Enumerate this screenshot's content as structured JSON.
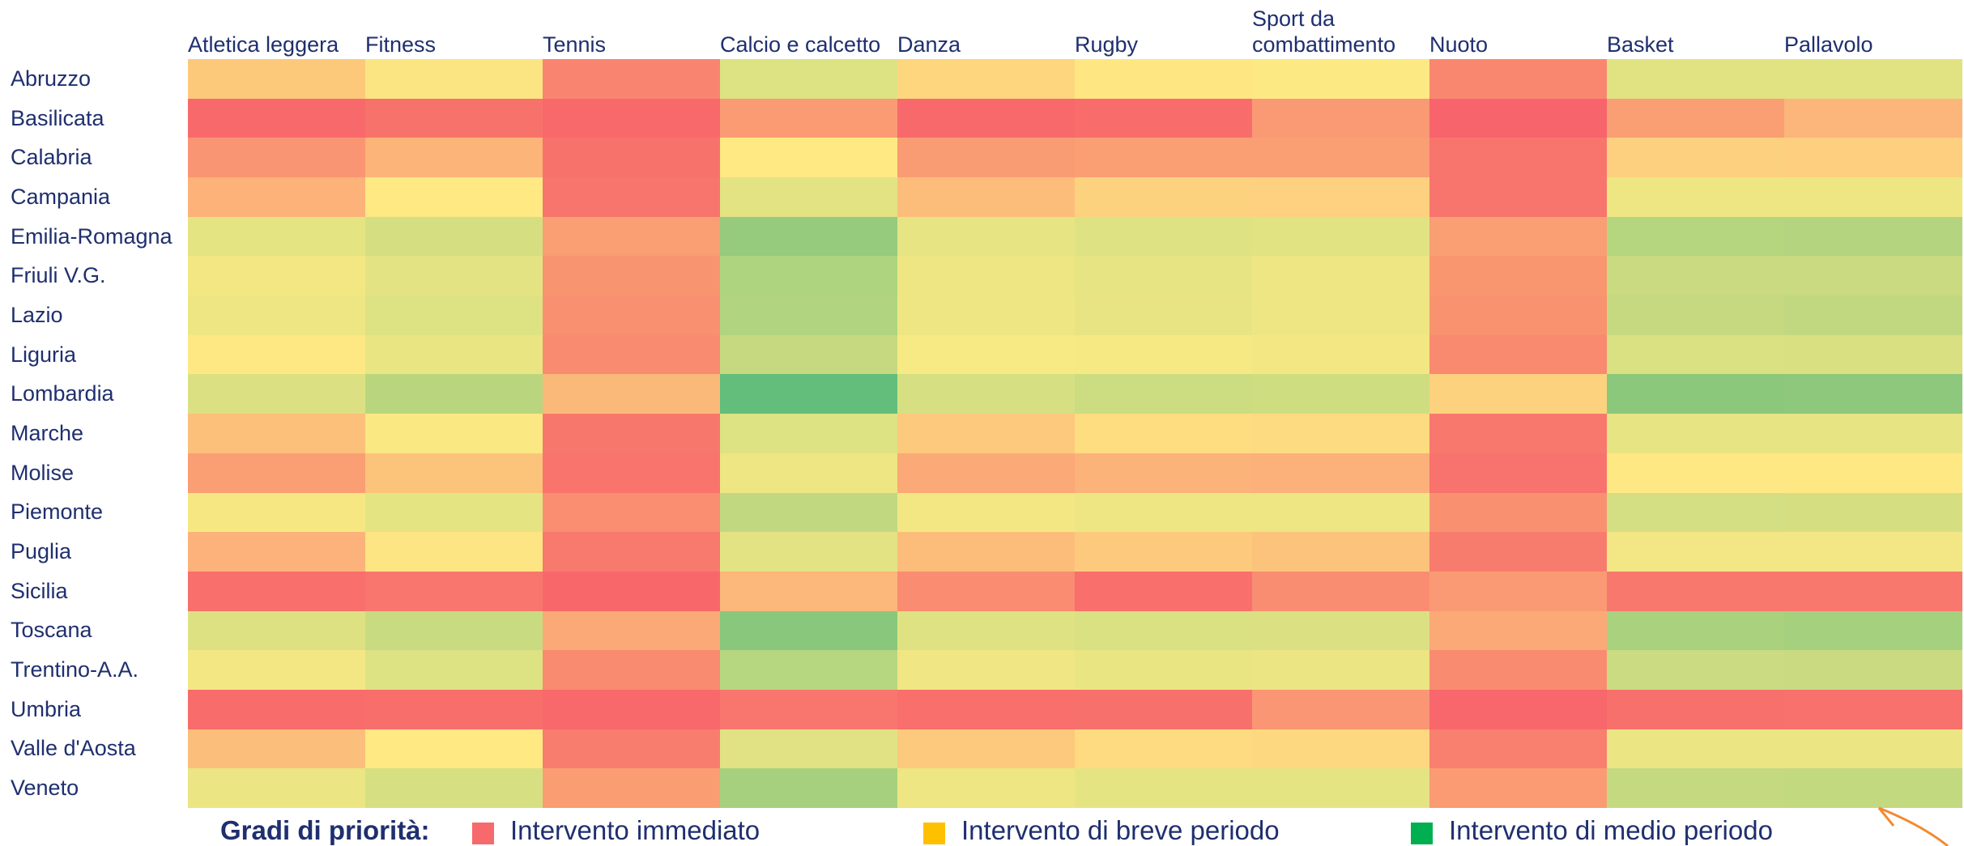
{
  "chart_data": {
    "type": "heatmap",
    "categories": [
      "Atletica leggera",
      "Fitness",
      "Tennis",
      "Calcio e calcetto",
      "Danza",
      "Rugby",
      "Sport da combattimento",
      "Nuoto",
      "Basket",
      "Pallavolo"
    ],
    "rows": [
      "Abruzzo",
      "Basilicata",
      "Calabria",
      "Campania",
      "Emilia-Romagna",
      "Friuli V.G.",
      "Lazio",
      "Liguria",
      "Lombardia",
      "Marche",
      "Molise",
      "Piemonte",
      "Puglia",
      "Sicilia",
      "Toscana",
      "Trentino-A.A.",
      "Umbria",
      "Valle d'Aosta",
      "Veneto"
    ],
    "colors": [
      [
        "#fcc97b",
        "#fbe583",
        "#f98570",
        "#dde283",
        "#fdd67e",
        "#fee782",
        "#fde984",
        "#f9876f",
        "#e1e383",
        "#e1e383"
      ],
      [
        "#f8696b",
        "#f8726c",
        "#f8696b",
        "#fa9b74",
        "#f8696b",
        "#f86d6b",
        "#fa9a74",
        "#f8646b",
        "#fa9e74",
        "#fcb57a"
      ],
      [
        "#fa9573",
        "#fcb479",
        "#f8726c",
        "#fee983",
        "#fa9c73",
        "#fa9e74",
        "#fa9e74",
        "#f8756d",
        "#fdd07f",
        "#fdcf7f"
      ],
      [
        "#fcb279",
        "#fee983",
        "#f8756d",
        "#e3e383",
        "#fcbd7b",
        "#fdd27f",
        "#fdd17f",
        "#f8756d",
        "#eee683",
        "#eee683"
      ],
      [
        "#e5e483",
        "#d5df81",
        "#fa9e73",
        "#96ca7d",
        "#e6e483",
        "#dfe283",
        "#e1e383",
        "#fa9f74",
        "#b6d57f",
        "#b4d47f"
      ],
      [
        "#f3e784",
        "#e3e383",
        "#f99470",
        "#aed47f",
        "#ede683",
        "#e6e483",
        "#eee683",
        "#f9956f",
        "#c9da81",
        "#c9da81"
      ],
      [
        "#eee683",
        "#dde283",
        "#f99170",
        "#b0d47f",
        "#eee683",
        "#e8e483",
        "#ede683",
        "#f9936f",
        "#c6d980",
        "#c2d880"
      ],
      [
        "#fee883",
        "#e9e583",
        "#f98c70",
        "#c6d980",
        "#f7e983",
        "#f6e983",
        "#f3e784",
        "#f98a70",
        "#d9e182",
        "#d8e082"
      ],
      [
        "#dbe182",
        "#b9d67f",
        "#fbb979",
        "#63be7b",
        "#d6e082",
        "#cbdc81",
        "#cfdd81",
        "#fdd27f",
        "#8cc87c",
        "#8ec87c"
      ],
      [
        "#fcc07b",
        "#fae983",
        "#f8776d",
        "#dde282",
        "#fdc97c",
        "#fedd80",
        "#fddb80",
        "#f8786d",
        "#e7e483",
        "#e7e483"
      ],
      [
        "#fa9e73",
        "#fcc47b",
        "#f8746d",
        "#eee683",
        "#fba977",
        "#fcb37a",
        "#fcb07a",
        "#f8736d",
        "#fee883",
        "#fee883"
      ],
      [
        "#f6e783",
        "#e4e483",
        "#f98e70",
        "#c2d880",
        "#f3e784",
        "#eee683",
        "#eee683",
        "#f99170",
        "#d3df82",
        "#d5df82"
      ],
      [
        "#fcb27a",
        "#fee583",
        "#f8796e",
        "#e4e383",
        "#fcbd7b",
        "#fdca7d",
        "#fcc37c",
        "#f87c6e",
        "#f2e784",
        "#f2e784"
      ],
      [
        "#f86f6b",
        "#f8766d",
        "#f8686b",
        "#fcb77a",
        "#f98c71",
        "#f86f6b",
        "#f98d71",
        "#fa9a74",
        "#f8786d",
        "#f8786d"
      ],
      [
        "#dde182",
        "#c9db81",
        "#fba977",
        "#89c77c",
        "#dfe282",
        "#d9e182",
        "#dbe182",
        "#fbaa77",
        "#a9d17e",
        "#a5d07e"
      ],
      [
        "#f3e784",
        "#dde283",
        "#f98b70",
        "#b7d680",
        "#f0e683",
        "#eae583",
        "#ebe583",
        "#f98c70",
        "#cbdb81",
        "#c9da81"
      ],
      [
        "#f86c6b",
        "#f86e6b",
        "#f8696b",
        "#f8766d",
        "#f86f6b",
        "#f8706b",
        "#fa9673",
        "#f8676b",
        "#f8706c",
        "#f8716c"
      ],
      [
        "#fcbe7b",
        "#fee983",
        "#f87d6e",
        "#e0e283",
        "#fdc97c",
        "#fedb80",
        "#fdd880",
        "#f97f6e",
        "#ece583",
        "#ece583"
      ],
      [
        "#ebe583",
        "#d6e082",
        "#fa9d73",
        "#a6d07e",
        "#ede683",
        "#e5e483",
        "#e4e483",
        "#fa9b74",
        "#c4d980",
        "#c3d980"
      ]
    ],
    "legend": {
      "title": "Gradi di priorità:",
      "items": [
        {
          "label": "Intervento immediato",
          "color": "#f8696b"
        },
        {
          "label": "Intervento di breve periodo",
          "color": "#ffc000"
        },
        {
          "label": "Intervento di medio periodo",
          "color": "#00b050"
        }
      ]
    }
  }
}
